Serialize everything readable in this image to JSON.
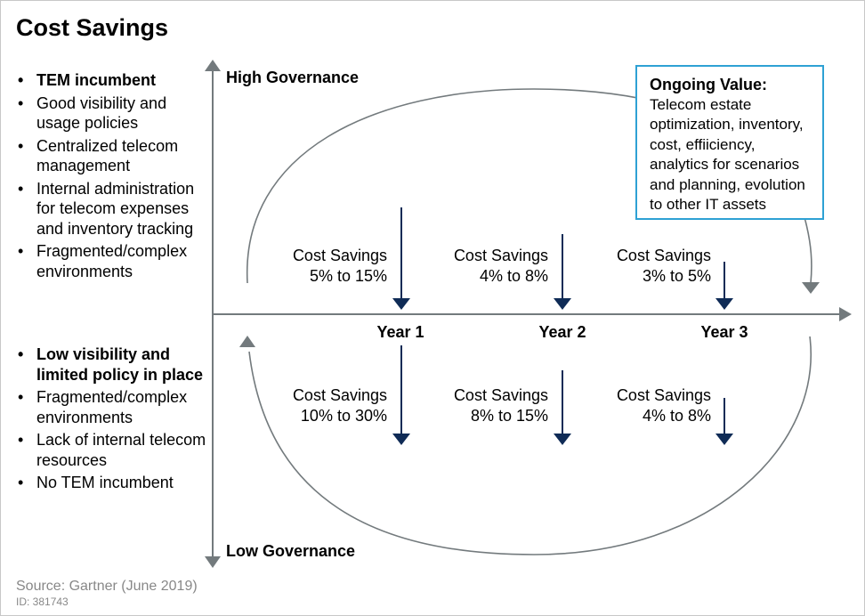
{
  "title": "Cost Savings",
  "high_list": [
    {
      "text": "TEM incumbent",
      "bold": true
    },
    {
      "text": "Good visibility and usage policies",
      "bold": false
    },
    {
      "text": "Centralized telecom management",
      "bold": false
    },
    {
      "text": "Internal administration for telecom expenses and inventory tracking",
      "bold": false
    },
    {
      "text": "Fragmented/complex environments",
      "bold": false
    }
  ],
  "low_list": [
    {
      "text": "Low visibility and limited policy in place",
      "bold": true
    },
    {
      "text": "Fragmented/complex environments",
      "bold": false
    },
    {
      "text": "Lack of internal telecom resources",
      "bold": false
    },
    {
      "text": "No TEM incumbent",
      "bold": false
    }
  ],
  "axis": {
    "high_label": "High Governance",
    "low_label": "Low Governance",
    "years": [
      "Year 1",
      "Year 2",
      "Year 3"
    ]
  },
  "savings": {
    "high": [
      {
        "label": "Cost Savings",
        "range": "5% to 15%"
      },
      {
        "label": "Cost Savings",
        "range": "4% to 8%"
      },
      {
        "label": "Cost Savings",
        "range": "3% to 5%"
      }
    ],
    "low": [
      {
        "label": "Cost Savings",
        "range": "10% to 30%"
      },
      {
        "label": "Cost Savings",
        "range": "8% to 15%"
      },
      {
        "label": "Cost Savings",
        "range": "4% to 8%"
      }
    ]
  },
  "ongoing_value": {
    "title": "Ongoing Value:",
    "text": "Telecom estate optimization, inventory, cost, effiiciency, analytics for scenarios and planning, evolution to other IT assets"
  },
  "source": "Source: Gartner (June 2019)",
  "id": "ID: 381743",
  "colors": {
    "arrow_dark": "#0f2b56",
    "axis_gray": "#737a7d",
    "box_border": "#2ea1d4"
  }
}
